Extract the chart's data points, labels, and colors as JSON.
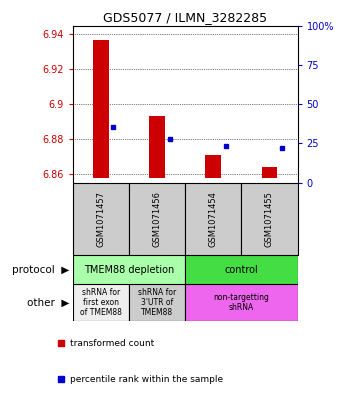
{
  "title": "GDS5077 / ILMN_3282285",
  "samples": [
    "GSM1071457",
    "GSM1071456",
    "GSM1071454",
    "GSM1071455"
  ],
  "red_values": [
    6.937,
    6.893,
    6.871,
    6.864
  ],
  "red_base": 6.858,
  "blue_values": [
    6.887,
    6.88,
    6.876,
    6.875
  ],
  "ylim": [
    6.855,
    6.945
  ],
  "yticks_left": [
    6.86,
    6.88,
    6.9,
    6.92,
    6.94
  ],
  "yticks_right": [
    0,
    25,
    50,
    75,
    100
  ],
  "protocol_labels": [
    "TMEM88 depletion",
    "control"
  ],
  "protocol_colors": [
    "#aaffaa",
    "#44dd44"
  ],
  "other_labels": [
    "shRNA for\nfirst exon\nof TMEM88",
    "shRNA for\n3'UTR of\nTMEM88",
    "non-targetting\nshRNA"
  ],
  "other_colors": [
    "#eeeeee",
    "#cccccc",
    "#ee66ee"
  ],
  "bar_color": "#cc0000",
  "dot_color": "#0000cc",
  "tick_color_left": "#cc0000",
  "tick_color_right": "#0000cc",
  "bg_color": "#ffffff",
  "sample_bg": "#cccccc"
}
